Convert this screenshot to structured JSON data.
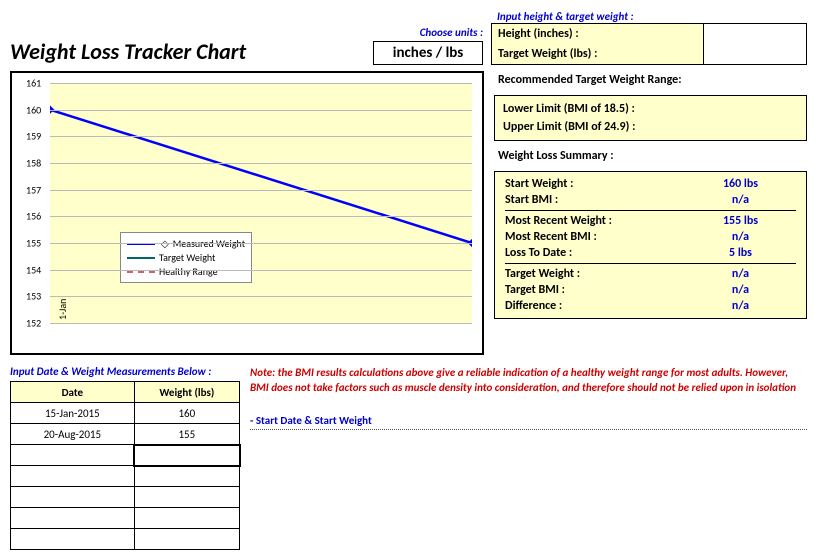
{
  "title": "Weight Loss Tracker Chart",
  "choose_units_label": "Choose units :",
  "units_value": "inches / lbs",
  "input_ht_wt_label": "Input height & target weight :",
  "height_label": "Height (inches) :",
  "height_value": "",
  "target_wt_label": "Target Weight (lbs) :",
  "target_wt_value": "",
  "range_header": "Recommended Target Weight Range:",
  "lower_limit_label": "Lower Limit (BMI of 18.5) :",
  "lower_limit_value": "",
  "upper_limit_label": "Upper Limit (BMI of 24.9) :",
  "upper_limit_value": "",
  "summary_header": "Weight Loss Summary :",
  "summary": {
    "start_weight_lbl": "Start Weight :",
    "start_weight_val": "160 lbs",
    "start_bmi_lbl": "Start BMI :",
    "start_bmi_val": "n/a",
    "recent_weight_lbl": "Most Recent Weight :",
    "recent_weight_val": "155 lbs",
    "recent_bmi_lbl": "Most Recent BMI :",
    "recent_bmi_val": "n/a",
    "loss_lbl": "Loss To Date :",
    "loss_val": "5 lbs",
    "target_wt_lbl": "Target Weight :",
    "target_wt_val": "n/a",
    "target_bmi_lbl": "Target BMI :",
    "target_bmi_val": "n/a",
    "diff_lbl": "Difference :",
    "diff_val": "n/a"
  },
  "input_data_label": "Input Date & Weight Measurements Below :",
  "data_table": {
    "col_date": "Date",
    "col_weight": "Weight (lbs)",
    "rows": [
      {
        "date": "15-Jan-2015",
        "weight": "160"
      },
      {
        "date": "20-Aug-2015",
        "weight": "155"
      },
      {
        "date": "",
        "weight": ""
      },
      {
        "date": "",
        "weight": ""
      },
      {
        "date": "",
        "weight": ""
      },
      {
        "date": "",
        "weight": ""
      },
      {
        "date": "",
        "weight": ""
      }
    ]
  },
  "note_text": "Note: the BMI results calculations above give a reliable indication of a healthy weight range for most adults. However, BMI does not take factors such as muscle density into consideration, and therefore should not be relied upon in isolation",
  "start_note": "- Start Date & Start Weight",
  "chart": {
    "type": "line",
    "ymin": 152,
    "ymax": 161,
    "ytick_step": 1,
    "x_labels": [
      "1-Jan"
    ],
    "series": [
      {
        "name": "Measured Weight",
        "color": "#0000ff",
        "width": 2.5,
        "style": "solid",
        "marker": "diamond",
        "points": [
          [
            0,
            160
          ],
          [
            1,
            155
          ]
        ]
      },
      {
        "name": "Target Weight",
        "color": "#006666",
        "width": 2,
        "style": "solid",
        "points": []
      },
      {
        "name": "Healthy Range",
        "color": "#cc6666",
        "width": 1,
        "style": "dashed",
        "points": []
      }
    ],
    "bg_color": "#ffffcc",
    "grid_color": "#bbbbbb"
  },
  "colors": {
    "yellow": "#ffffcc",
    "blue_text": "#0000cc",
    "red_text": "#cc0000"
  }
}
